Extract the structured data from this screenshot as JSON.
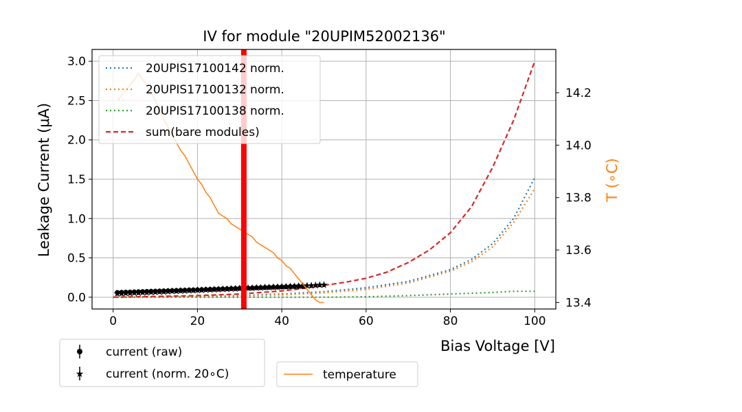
{
  "chart_data": {
    "type": "line",
    "title": "IV for module \"20UPIM52002136\"",
    "xlabel": "Bias Voltage [V]",
    "ylabel": "Leakage Current (μA)",
    "y2label": "T (∘C)",
    "xlim": [
      -5,
      105
    ],
    "ylim": [
      -0.15,
      3.15
    ],
    "y2lim": [
      13.375,
      14.365
    ],
    "grid": true,
    "x_ticks": [
      0,
      20,
      40,
      60,
      80,
      100
    ],
    "y_ticks": [
      0.0,
      0.5,
      1.0,
      1.5,
      2.0,
      2.5,
      3.0
    ],
    "y2_ticks": [
      13.4,
      13.6,
      13.8,
      14.0,
      14.2
    ],
    "x_tick_labels": [
      "0",
      "20",
      "40",
      "60",
      "80",
      "100"
    ],
    "y_tick_labels": [
      "0.0",
      "0.5",
      "1.0",
      "1.5",
      "2.0",
      "2.5",
      "3.0"
    ],
    "y2_tick_labels": [
      "13.4",
      "13.6",
      "13.8",
      "14.0",
      "14.2"
    ],
    "vline": {
      "x": 31,
      "color": "#ff0000"
    },
    "legend_main": {
      "placement": "upper-left",
      "entries": [
        {
          "label": "20UPIS17100142 norm.",
          "color": "#1f77b4",
          "style": "dotted"
        },
        {
          "label": "20UPIS17100132 norm.",
          "color": "#ff7f0e",
          "style": "dotted"
        },
        {
          "label": "20UPIS17100138 norm.",
          "color": "#2ca02c",
          "style": "dotted"
        },
        {
          "label": "sum(bare modules)",
          "color": "#d62728",
          "style": "dashed"
        }
      ]
    },
    "legend_current": {
      "placement": "below-left",
      "entries": [
        {
          "label": "current (raw)",
          "marker": "circle"
        },
        {
          "label": "current (norm. 20∘C)",
          "marker": "star"
        }
      ]
    },
    "legend_temp": {
      "placement": "below-center",
      "entries": [
        {
          "label": "temperature",
          "color": "#ff7f0e"
        }
      ]
    },
    "series": [
      {
        "name": "20UPIS17100142 norm.",
        "color": "#1f77b4",
        "style": "dotted",
        "x": [
          0,
          10,
          20,
          30,
          40,
          50,
          60,
          70,
          80,
          85,
          90,
          95,
          100
        ],
        "y": [
          0.0,
          0.005,
          0.01,
          0.02,
          0.04,
          0.07,
          0.12,
          0.2,
          0.35,
          0.48,
          0.68,
          1.0,
          1.52
        ]
      },
      {
        "name": "20UPIS17100132 norm.",
        "color": "#ff7f0e",
        "style": "dotted",
        "x": [
          0,
          10,
          20,
          30,
          40,
          50,
          60,
          70,
          80,
          85,
          90,
          95,
          100
        ],
        "y": [
          0.0,
          0.004,
          0.008,
          0.016,
          0.03,
          0.055,
          0.1,
          0.18,
          0.33,
          0.45,
          0.64,
          0.95,
          1.38
        ]
      },
      {
        "name": "20UPIS17100138 norm.",
        "color": "#2ca02c",
        "style": "dotted",
        "x": [
          0,
          10,
          20,
          30,
          40,
          50,
          60,
          70,
          80,
          90,
          95,
          100
        ],
        "y": [
          0.0,
          0.0,
          0.0,
          0.0,
          0.0,
          0.0,
          0.005,
          0.02,
          0.04,
          0.06,
          0.075,
          0.075
        ]
      },
      {
        "name": "sum(bare modules)",
        "color": "#d62728",
        "style": "dashed",
        "x": [
          0,
          10,
          20,
          30,
          40,
          45,
          50,
          55,
          60,
          65,
          70,
          75,
          80,
          85,
          90,
          95,
          100
        ],
        "y": [
          0.0,
          0.01,
          0.02,
          0.04,
          0.08,
          0.11,
          0.15,
          0.19,
          0.24,
          0.32,
          0.44,
          0.6,
          0.82,
          1.15,
          1.65,
          2.25,
          3.0
        ]
      }
    ],
    "current_raw": {
      "x_start": 1,
      "x_end": 45,
      "step": 1,
      "y_start": 0.06,
      "y_end": 0.14
    },
    "current_norm": {
      "x_start": 1,
      "x_end": 50,
      "step": 1,
      "y_start": 0.05,
      "y_end": 0.16,
      "error": 0.03
    },
    "temperature": {
      "name": "temperature",
      "color": "#ff7f0e",
      "x": [
        1,
        2,
        3,
        4,
        5,
        6,
        7,
        8,
        9,
        10,
        11,
        12,
        13,
        14,
        15,
        16,
        17,
        18,
        19,
        20,
        21,
        22,
        23,
        24,
        25,
        26,
        27,
        28,
        29,
        30,
        31,
        32,
        33,
        34,
        35,
        36,
        37,
        38,
        39,
        40,
        41,
        42,
        43,
        44,
        45,
        46,
        47,
        48,
        49,
        50
      ],
      "y": [
        14.17,
        14.19,
        14.21,
        14.23,
        14.25,
        14.275,
        14.25,
        14.23,
        14.2,
        14.17,
        14.13,
        14.1,
        14.07,
        14.04,
        14.01,
        13.98,
        13.96,
        13.93,
        13.9,
        13.87,
        13.85,
        13.82,
        13.8,
        13.77,
        13.74,
        13.73,
        13.72,
        13.7,
        13.69,
        13.68,
        13.67,
        13.66,
        13.65,
        13.63,
        13.62,
        13.61,
        13.6,
        13.59,
        13.57,
        13.56,
        13.54,
        13.53,
        13.51,
        13.49,
        13.47,
        13.45,
        13.43,
        13.41,
        13.4,
        13.4
      ]
    }
  }
}
